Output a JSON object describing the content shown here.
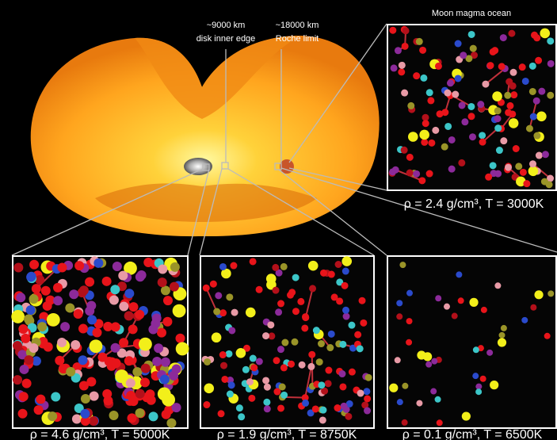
{
  "labels": {
    "inner_edge_distance": "~9000 km",
    "inner_edge_name": "disk inner edge",
    "roche_distance": "~18000 km",
    "roche_name": "Roche limit"
  },
  "panels": [
    {
      "title": "Moon magma ocean",
      "caption": "ρ = 2.4 g/cm³, T = 3000K"
    },
    {
      "caption": "ρ = 4.6 g/cm³, T = 5000K"
    },
    {
      "caption": "ρ = 1.9 g/cm³, T = 8750K"
    },
    {
      "caption": "ρ = 0.1 g/cm³, T = 6500K"
    }
  ]
}
